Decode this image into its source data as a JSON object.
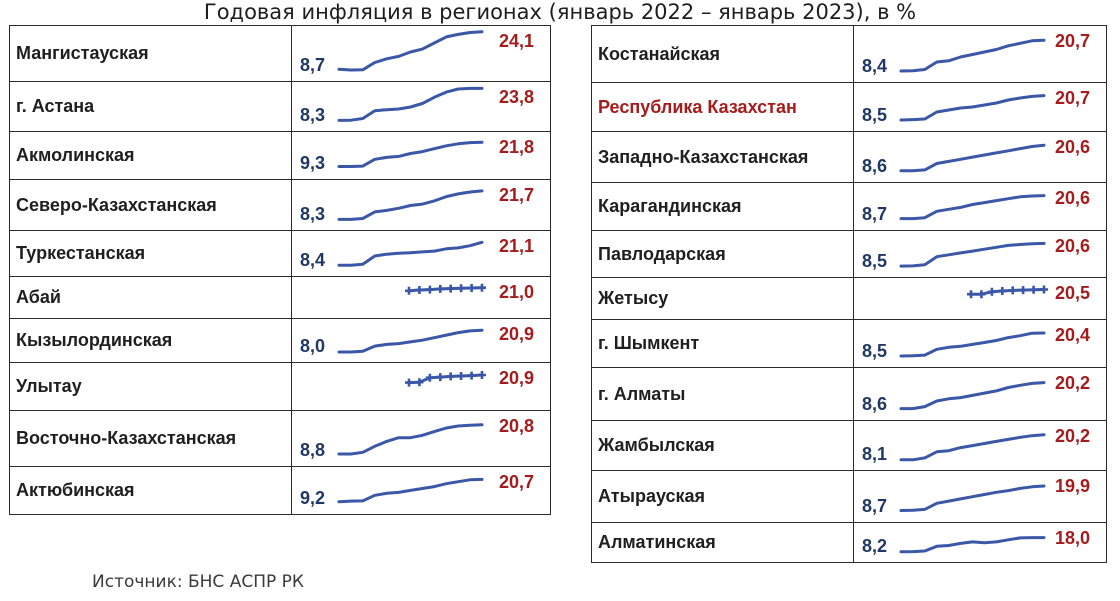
{
  "title": "Годовая инфляция в регионах (январь 2022 – январь 2023), в %",
  "source": "Источник: БНС АСПР РК",
  "colors": {
    "line": "#3a57a8",
    "start_value": "#1f3864",
    "end_value": "#a61c1c",
    "highlight": "#a61c1c"
  },
  "chart_data": {
    "type": "sparkline-table",
    "title": "Годовая инфляция в регионах (январь 2022 – январь 2023), в %",
    "period": "январь 2022 – январь 2023",
    "unit": "%",
    "columns": [
      [
        {
          "region": "Мангистауская",
          "start": 8.7,
          "end": 24.1,
          "series": [
            8.7,
            8.4,
            8.5,
            11.5,
            13.0,
            14.0,
            15.8,
            17.0,
            19.5,
            22.0,
            23.0,
            23.8,
            24.1
          ]
        },
        {
          "region": "г. Астана",
          "start": 8.3,
          "end": 23.8,
          "series": [
            8.3,
            8.4,
            9.2,
            13.0,
            13.5,
            13.8,
            14.8,
            16.5,
            19.5,
            22.0,
            23.5,
            23.8,
            23.8
          ]
        },
        {
          "region": "Акмолинская",
          "start": 9.3,
          "end": 21.8,
          "series": [
            9.3,
            9.3,
            9.5,
            13.0,
            14.0,
            14.5,
            16.0,
            17.0,
            18.5,
            20.0,
            21.0,
            21.6,
            21.8
          ]
        },
        {
          "region": "Северо-Казахстанская",
          "start": 8.3,
          "end": 21.7,
          "series": [
            8.3,
            8.3,
            8.7,
            11.8,
            12.5,
            13.5,
            14.8,
            15.5,
            17.0,
            19.0,
            20.3,
            21.2,
            21.7
          ]
        },
        {
          "region": "Туркестанская",
          "start": 8.4,
          "end": 21.1,
          "series": [
            8.4,
            8.4,
            9.0,
            13.5,
            14.5,
            15.0,
            15.3,
            15.8,
            16.2,
            17.5,
            18.0,
            19.2,
            21.1
          ]
        },
        {
          "region": "Абай",
          "start": null,
          "end": 21.0,
          "series": [
            19.0,
            19.5,
            19.8,
            20.2,
            20.4,
            20.6,
            20.8,
            21.0
          ]
        },
        {
          "region": "Кызылординская",
          "start": 8.0,
          "end": 20.9,
          "series": [
            8.0,
            8.0,
            8.5,
            11.5,
            12.5,
            13.0,
            14.0,
            15.0,
            16.5,
            18.0,
            19.5,
            20.5,
            20.9
          ]
        },
        {
          "region": "Улытау",
          "start": null,
          "end": 20.9,
          "series": [
            17.0,
            17.2,
            19.5,
            19.8,
            20.2,
            20.4,
            20.6,
            20.9
          ]
        },
        {
          "region": "Восточно-Казахстанская",
          "start": 8.8,
          "end": 20.8,
          "series": [
            8.8,
            8.8,
            9.5,
            12.0,
            14.0,
            15.5,
            15.5,
            16.5,
            18.0,
            19.5,
            20.3,
            20.6,
            20.8
          ]
        },
        {
          "region": "Актюбинская",
          "start": 9.2,
          "end": 20.7,
          "series": [
            9.2,
            9.5,
            9.6,
            12.5,
            13.5,
            14.0,
            15.0,
            16.0,
            17.0,
            18.5,
            19.5,
            20.5,
            20.7
          ]
        }
      ],
      [
        {
          "region": "Костанайская",
          "start": 8.4,
          "end": 20.7,
          "series": [
            8.4,
            8.5,
            9.0,
            12.0,
            12.5,
            14.0,
            15.0,
            16.0,
            17.0,
            18.5,
            19.5,
            20.5,
            20.7
          ]
        },
        {
          "region": "Республика Казахстан",
          "start": 8.5,
          "end": 20.7,
          "highlight": true,
          "series": [
            8.5,
            8.7,
            9.0,
            12.5,
            13.5,
            14.5,
            15.0,
            16.0,
            17.0,
            18.5,
            19.5,
            20.3,
            20.7
          ]
        },
        {
          "region": "Западно-Казахстанская",
          "start": 8.6,
          "end": 20.6,
          "series": [
            8.6,
            8.6,
            9.0,
            12.0,
            13.0,
            14.0,
            15.0,
            16.0,
            17.0,
            18.0,
            19.0,
            20.0,
            20.6
          ]
        },
        {
          "region": "Карагандинская",
          "start": 8.7,
          "end": 20.6,
          "series": [
            8.7,
            8.7,
            9.2,
            12.5,
            13.5,
            14.5,
            16.0,
            17.0,
            18.0,
            19.0,
            20.0,
            20.4,
            20.6
          ]
        },
        {
          "region": "Павлодарская",
          "start": 8.5,
          "end": 20.6,
          "series": [
            8.5,
            8.6,
            9.2,
            13.5,
            14.5,
            15.5,
            16.5,
            17.5,
            18.5,
            19.5,
            20.0,
            20.4,
            20.6
          ]
        },
        {
          "region": "Жетысу",
          "start": null,
          "end": 20.5,
          "series": [
            17.5,
            17.5,
            19.0,
            19.5,
            19.9,
            20.1,
            20.3,
            20.5
          ]
        },
        {
          "region": "г. Шымкент",
          "start": 8.5,
          "end": 20.4,
          "series": [
            8.5,
            8.6,
            9.0,
            12.0,
            13.0,
            13.5,
            14.5,
            15.5,
            16.5,
            18.0,
            19.0,
            20.3,
            20.4
          ]
        },
        {
          "region": "г. Алматы",
          "start": 8.6,
          "end": 20.2,
          "series": [
            8.6,
            8.6,
            9.5,
            12.0,
            13.0,
            13.5,
            14.5,
            15.5,
            16.5,
            18.0,
            19.0,
            19.8,
            20.2
          ]
        },
        {
          "region": "Жамбылская",
          "start": 8.1,
          "end": 20.2,
          "series": [
            8.1,
            8.1,
            9.0,
            12.0,
            12.5,
            14.0,
            15.0,
            16.0,
            17.0,
            18.0,
            19.0,
            19.8,
            20.2
          ]
        },
        {
          "region": "Атырауская",
          "start": 8.7,
          "end": 19.9,
          "series": [
            8.7,
            8.8,
            9.2,
            12.0,
            13.0,
            14.0,
            15.0,
            16.0,
            17.0,
            17.8,
            18.8,
            19.5,
            19.9
          ]
        },
        {
          "region": "Алматинская",
          "start": 8.2,
          "end": 18.0,
          "series": [
            8.2,
            8.3,
            8.7,
            12.0,
            12.5,
            14.0,
            15.0,
            14.5,
            15.0,
            16.5,
            17.8,
            18.0,
            18.0
          ]
        }
      ]
    ]
  }
}
